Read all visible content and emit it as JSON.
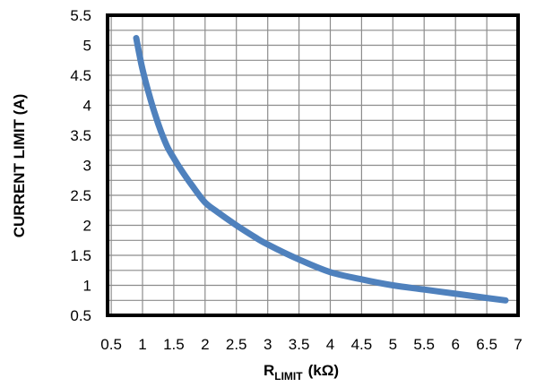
{
  "chart_data": {
    "type": "line",
    "title": "",
    "xlabel": {
      "main": "R",
      "subscript": "LIMIT",
      "unit": "(kΩ)"
    },
    "ylabel": "CURRENT LIMIT (A)",
    "xlim": [
      0.5,
      7
    ],
    "ylim": [
      0.5,
      5.5
    ],
    "x_ticks": [
      "0.5",
      "1",
      "1.5",
      "2",
      "2.5",
      "3",
      "3.5",
      "4",
      "4.5",
      "5",
      "5.5",
      "6",
      "6.5",
      "7"
    ],
    "y_ticks": [
      "0.5",
      "1",
      "1.5",
      "2",
      "2.5",
      "3",
      "3.5",
      "4",
      "4.5",
      "5",
      "5.5"
    ],
    "x_grid_step": 0.5,
    "y_grid_step": 0.25,
    "grid": true,
    "legend": "none",
    "series": [
      {
        "color": "#4F81BD",
        "x": [
          0.9,
          0.95,
          1.0,
          1.1,
          1.2,
          1.3,
          1.4,
          1.5,
          1.6,
          1.8,
          2.0,
          2.2,
          2.5,
          2.8,
          3.0,
          3.5,
          4.0,
          4.5,
          5.0,
          5.5,
          6.0,
          6.5,
          6.8
        ],
        "y": [
          5.12,
          4.85,
          4.6,
          4.2,
          3.85,
          3.55,
          3.3,
          3.12,
          2.95,
          2.65,
          2.38,
          2.22,
          2.0,
          1.8,
          1.68,
          1.43,
          1.22,
          1.1,
          1.0,
          0.93,
          0.86,
          0.79,
          0.75
        ]
      }
    ]
  }
}
